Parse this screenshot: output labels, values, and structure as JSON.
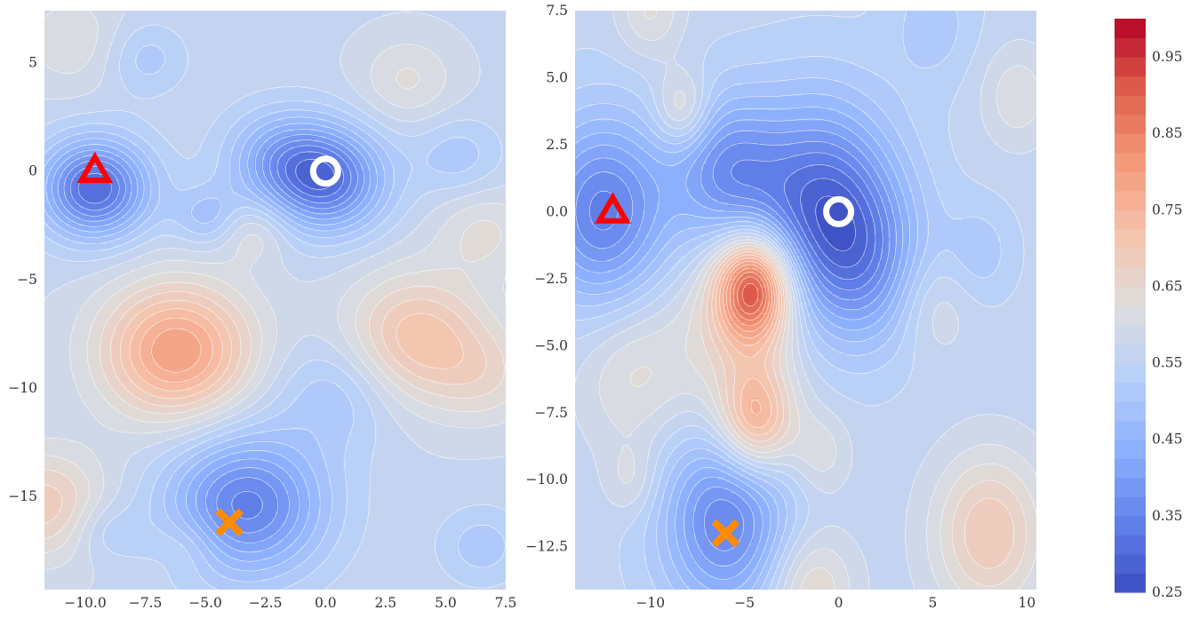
{
  "chart_data": [
    {
      "type": "heatmap",
      "title": "",
      "xlabel": "",
      "ylabel": "",
      "xlim": [
        -11.7,
        7.5
      ],
      "ylim": [
        -19.3,
        7.4
      ],
      "grid": false,
      "xticks": [
        -10.0,
        -7.5,
        -5.0,
        -2.5,
        0.0,
        2.5,
        5.0,
        7.5
      ],
      "xtick_labels": [
        "−10.0",
        "−7.5",
        "−5.0",
        "−2.5",
        "0.0",
        "2.5",
        "5.0",
        "7.5"
      ],
      "yticks": [
        5,
        0,
        -5,
        -10,
        -15
      ],
      "ytick_labels": [
        "5",
        "0",
        "−5",
        "−10",
        "−15"
      ],
      "bumps": [
        {
          "x": -9.6,
          "y": -0.8,
          "a": -0.27,
          "s": 1.6
        },
        {
          "x": 0.1,
          "y": -0.4,
          "a": -0.24,
          "s": 1.7
        },
        {
          "x": -2.0,
          "y": 0.6,
          "a": -0.12,
          "s": 1.6
        },
        {
          "x": -4.9,
          "y": -2.1,
          "a": -0.08,
          "s": 1.0
        },
        {
          "x": -3.0,
          "y": -2.8,
          "a": 0.06,
          "s": 1.0
        },
        {
          "x": -7.5,
          "y": 5.2,
          "a": -0.06,
          "s": 1.2
        },
        {
          "x": 5.5,
          "y": 0.7,
          "a": -0.06,
          "s": 1.3
        },
        {
          "x": 3.4,
          "y": 4.2,
          "a": 0.06,
          "s": 1.4
        },
        {
          "x": 6.6,
          "y": -2.8,
          "a": 0.06,
          "s": 1.4
        },
        {
          "x": -10.5,
          "y": 6.0,
          "a": 0.05,
          "s": 1.6
        },
        {
          "x": -6.2,
          "y": -8.3,
          "a": 0.23,
          "s": 2.2
        },
        {
          "x": 3.8,
          "y": -7.7,
          "a": 0.15,
          "s": 2.1
        },
        {
          "x": 6.8,
          "y": -9.5,
          "a": 0.06,
          "s": 1.6
        },
        {
          "x": 0.5,
          "y": -10.2,
          "a": -0.07,
          "s": 1.8
        },
        {
          "x": -3.3,
          "y": -15.4,
          "a": -0.23,
          "s": 2.3
        },
        {
          "x": -11.7,
          "y": -15.4,
          "a": 0.12,
          "s": 1.8
        },
        {
          "x": -5.7,
          "y": -17.3,
          "a": 0.04,
          "s": 1.0
        },
        {
          "x": 6.5,
          "y": -17.3,
          "a": -0.06,
          "s": 1.3
        },
        {
          "x": -9.2,
          "y": -16.6,
          "a": -0.05,
          "s": 1.0
        }
      ],
      "base": 0.57,
      "markers": [
        {
          "shape": "triangle",
          "x": -9.6,
          "y": 0.0,
          "color": "#ff0000"
        },
        {
          "shape": "circle",
          "x": 0.0,
          "y": 0.0,
          "color": "#ffffff"
        },
        {
          "shape": "x",
          "x": -4.0,
          "y": -16.2,
          "color": "#ff8c00"
        }
      ]
    },
    {
      "type": "heatmap",
      "title": "",
      "xlabel": "",
      "ylabel": "",
      "xlim": [
        -14.0,
        10.5
      ],
      "ylim": [
        -14.1,
        7.5
      ],
      "grid": false,
      "xticks": [
        -10,
        -5,
        0,
        5,
        10
      ],
      "xtick_labels": [
        "−10",
        "−5",
        "0",
        "5",
        "10"
      ],
      "yticks": [
        7.5,
        5.0,
        2.5,
        0.0,
        -2.5,
        -5.0,
        -7.5,
        -10.0,
        -12.5
      ],
      "ytick_labels": [
        "7.5",
        "5.0",
        "2.5",
        "0.0",
        "−2.5",
        "−5.0",
        "−7.5",
        "−10.0",
        "−12.5"
      ],
      "bumps": [
        {
          "x": -12.5,
          "y": 0.0,
          "a": -0.22,
          "s": 2.5
        },
        {
          "x": -1.0,
          "y": 0.2,
          "a": -0.25,
          "s": 2.8
        },
        {
          "x": 1.5,
          "y": -2.0,
          "a": -0.12,
          "s": 2.2
        },
        {
          "x": -6.0,
          "y": 1.5,
          "a": -0.16,
          "s": 2.0
        },
        {
          "x": -4.5,
          "y": -2.8,
          "a": 0.36,
          "s": 1.4
        },
        {
          "x": -5.5,
          "y": -4.5,
          "a": 0.09,
          "s": 2.5
        },
        {
          "x": -11.0,
          "y": -6.0,
          "a": 0.07,
          "s": 2.0
        },
        {
          "x": -4.4,
          "y": -7.8,
          "a": 0.2,
          "s": 1.4
        },
        {
          "x": -8.3,
          "y": 3.8,
          "a": 0.1,
          "s": 1.0
        },
        {
          "x": -10.0,
          "y": 7.5,
          "a": 0.07,
          "s": 1.2
        },
        {
          "x": 8.0,
          "y": -12.0,
          "a": 0.14,
          "s": 2.1
        },
        {
          "x": -6.0,
          "y": -11.5,
          "a": -0.21,
          "s": 2.4
        },
        {
          "x": -1.0,
          "y": -9.0,
          "a": 0.06,
          "s": 1.1
        },
        {
          "x": -1.5,
          "y": -14.1,
          "a": 0.1,
          "s": 1.6
        },
        {
          "x": 9.5,
          "y": 4.3,
          "a": 0.06,
          "s": 1.3
        },
        {
          "x": 5.0,
          "y": -3.5,
          "a": 0.05,
          "s": 1.4
        },
        {
          "x": 7.5,
          "y": -1.5,
          "a": -0.05,
          "s": 1.3
        },
        {
          "x": 5.0,
          "y": 7.0,
          "a": -0.05,
          "s": 1.6
        },
        {
          "x": -11.0,
          "y": -10.0,
          "a": 0.05,
          "s": 1.0
        }
      ],
      "base": 0.56,
      "markers": [
        {
          "shape": "triangle",
          "x": -12.0,
          "y": 0.0,
          "color": "#ff0000"
        },
        {
          "shape": "circle",
          "x": 0.0,
          "y": 0.0,
          "color": "#ffffff"
        },
        {
          "shape": "x",
          "x": -6.0,
          "y": -12.0,
          "color": "#ff8c00"
        }
      ]
    },
    {
      "type": "colorbar",
      "colormap": "coolwarm",
      "range": [
        0.25,
        1.0
      ],
      "levels": 30,
      "ticks": [
        0.25,
        0.35,
        0.45,
        0.55,
        0.65,
        0.75,
        0.85,
        0.95
      ],
      "tick_labels": [
        "0.25",
        "0.35",
        "0.45",
        "0.55",
        "0.65",
        "0.75",
        "0.85",
        "0.95"
      ]
    }
  ]
}
